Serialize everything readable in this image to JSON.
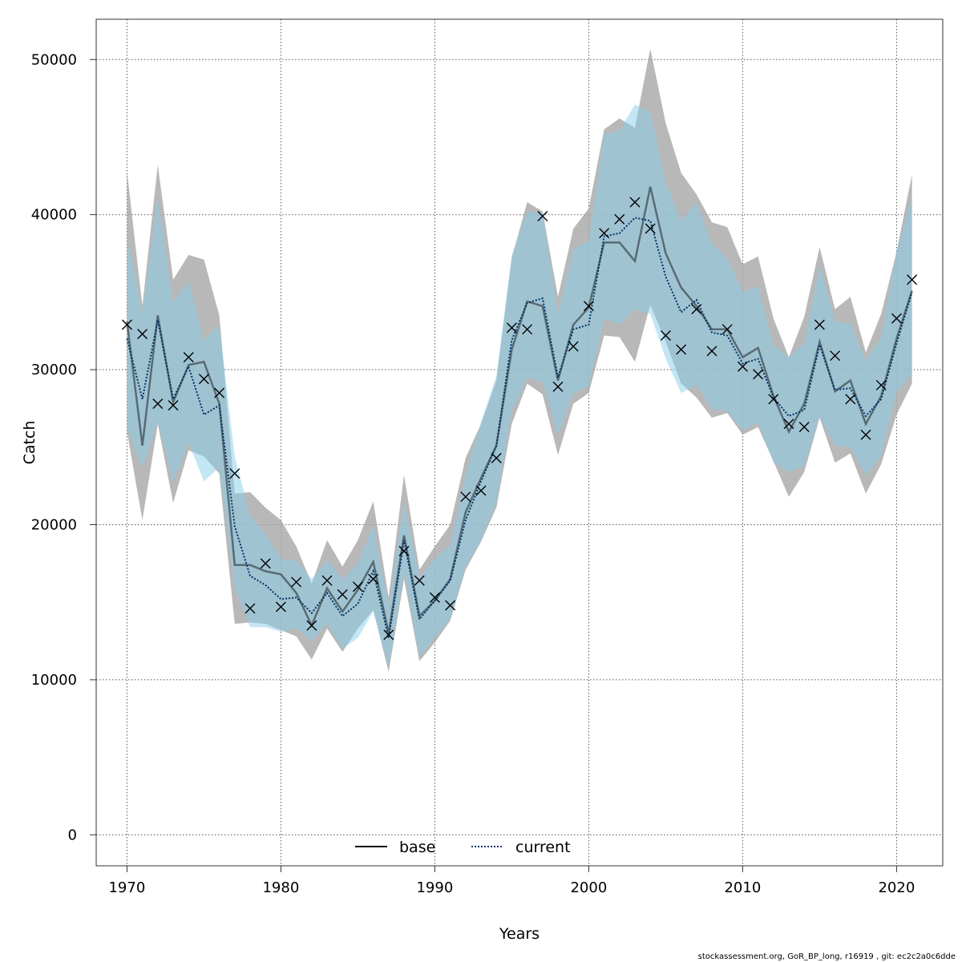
{
  "chart_data": {
    "type": "line",
    "xlabel": "Years",
    "ylabel": "Catch",
    "xlim": [
      1968,
      2023
    ],
    "ylim": [
      -2000,
      52600
    ],
    "x_ticks": [
      1970,
      1980,
      1990,
      2000,
      2010,
      2020
    ],
    "y_ticks": [
      0,
      10000,
      20000,
      30000,
      40000,
      50000
    ],
    "grid": true,
    "legend_position": "bottom-center",
    "colors": {
      "base_line": "#000000",
      "current_line": "#003366",
      "base_band": "#a6a6a6",
      "current_band": "#87ceeb",
      "observed_marker": "#000000",
      "grid": "#555555"
    },
    "x": [
      1970,
      1971,
      1972,
      1973,
      1974,
      1975,
      1976,
      1977,
      1978,
      1979,
      1980,
      1981,
      1982,
      1983,
      1984,
      1985,
      1986,
      1987,
      1988,
      1989,
      1990,
      1991,
      1992,
      1993,
      1994,
      1995,
      1996,
      1997,
      1998,
      1999,
      2000,
      2001,
      2002,
      2003,
      2004,
      2005,
      2006,
      2007,
      2008,
      2009,
      2010,
      2011,
      2012,
      2013,
      2014,
      2015,
      2016,
      2017,
      2018,
      2019,
      2020,
      2021
    ],
    "observed": {
      "name": "",
      "marker": "x",
      "values": [
        32900,
        32300,
        27800,
        27700,
        30800,
        29400,
        28500,
        23300,
        14600,
        17500,
        14700,
        16300,
        13500,
        16400,
        15500,
        16000,
        16500,
        12900,
        18300,
        16400,
        15300,
        14800,
        21800,
        22200,
        24300,
        32700,
        32600,
        39900,
        28900,
        31500,
        34100,
        38800,
        39700,
        40800,
        39100,
        32200,
        31300,
        33900,
        31200,
        32600,
        30200,
        29700,
        28100,
        26500,
        26300,
        32900,
        30900,
        28100,
        25800,
        29000,
        33300,
        35800
      ]
    },
    "series": [
      {
        "name": "base",
        "style": "solid",
        "values": [
          33100,
          25100,
          33500,
          27900,
          30300,
          30500,
          27800,
          17400,
          17400,
          17000,
          16800,
          15600,
          13500,
          15900,
          14400,
          15800,
          17600,
          13000,
          19300,
          14100,
          15100,
          16500,
          20800,
          23000,
          25100,
          31300,
          34400,
          34100,
          29300,
          32900,
          34000,
          38200,
          38200,
          37000,
          41800,
          37500,
          35300,
          34100,
          32600,
          32600,
          30800,
          31400,
          28300,
          26000,
          27800,
          31800,
          28600,
          29300,
          26500,
          28300,
          32000,
          35100
        ]
      },
      {
        "name": "current",
        "style": "dotted",
        "values": [
          32000,
          28100,
          33200,
          28100,
          30200,
          27100,
          27700,
          19900,
          16700,
          16100,
          15200,
          15300,
          14300,
          15600,
          14100,
          14900,
          17000,
          12700,
          19000,
          13900,
          15100,
          16400,
          20300,
          22800,
          25100,
          31900,
          34300,
          34600,
          29500,
          32600,
          32900,
          38600,
          38800,
          39800,
          39600,
          36000,
          33700,
          34500,
          32400,
          32200,
          30400,
          30700,
          28200,
          27000,
          27400,
          31600,
          28700,
          28800,
          27000,
          28100,
          31700,
          35000
        ]
      }
    ],
    "bands": [
      {
        "of": "base",
        "lower": [
          26000,
          20300,
          26500,
          21400,
          24800,
          24400,
          23300,
          13600,
          13700,
          13600,
          13200,
          12800,
          11300,
          13300,
          11800,
          13300,
          14500,
          10500,
          16500,
          11200,
          12400,
          13800,
          17100,
          18900,
          21100,
          26500,
          29100,
          28400,
          24500,
          27800,
          28500,
          32200,
          32100,
          30500,
          34200,
          31800,
          29100,
          28200,
          26900,
          27200,
          25800,
          26300,
          24100,
          21800,
          23400,
          26900,
          24000,
          24600,
          22000,
          23900,
          27100,
          29100
        ]
      },
      {
        "of": "base",
        "upper": [
          42800,
          34100,
          43200,
          35800,
          37400,
          37100,
          33500,
          22000,
          22100,
          21100,
          20300,
          18600,
          16200,
          19000,
          17300,
          19000,
          21500,
          15300,
          23200,
          17100,
          18600,
          20000,
          24300,
          26500,
          29300,
          37200,
          40800,
          40200,
          34700,
          39100,
          40400,
          45500,
          46200,
          45600,
          50700,
          45900,
          42700,
          41300,
          39500,
          39200,
          36800,
          37300,
          33300,
          30800,
          33400,
          37900,
          33900,
          34700,
          31100,
          33600,
          37600,
          42600
        ]
      },
      {
        "of": "current",
        "lower": [
          26200,
          23700,
          26600,
          22700,
          25300,
          22800,
          23700,
          15900,
          13400,
          13400,
          13100,
          13300,
          12500,
          13600,
          12000,
          12700,
          14400,
          10800,
          17000,
          11500,
          12700,
          14000,
          17300,
          19000,
          21500,
          27300,
          29500,
          29200,
          25800,
          28500,
          28900,
          33300,
          32900,
          33900,
          33600,
          30700,
          28500,
          29000,
          27500,
          27300,
          26100,
          26600,
          24000,
          23400,
          23800,
          27000,
          25100,
          25000,
          23200,
          24400,
          28500,
          29800
        ]
      },
      {
        "of": "current",
        "upper": [
          38500,
          33700,
          41200,
          34300,
          35700,
          31900,
          32900,
          24400,
          20600,
          19400,
          17800,
          17700,
          16500,
          17700,
          16500,
          17500,
          20000,
          14800,
          21500,
          16600,
          17800,
          18700,
          23300,
          26600,
          29600,
          37400,
          40200,
          40100,
          33700,
          37800,
          38300,
          45200,
          45400,
          47100,
          46600,
          42100,
          39600,
          40800,
          38100,
          37200,
          35000,
          35400,
          31600,
          30800,
          31700,
          36700,
          33100,
          33000,
          30600,
          32100,
          37700,
          41000
        ]
      }
    ]
  },
  "footer": {
    "text": "stockassessment.org, GoR_BP_long, r16919 , git: ec2c2a0c6dde"
  }
}
